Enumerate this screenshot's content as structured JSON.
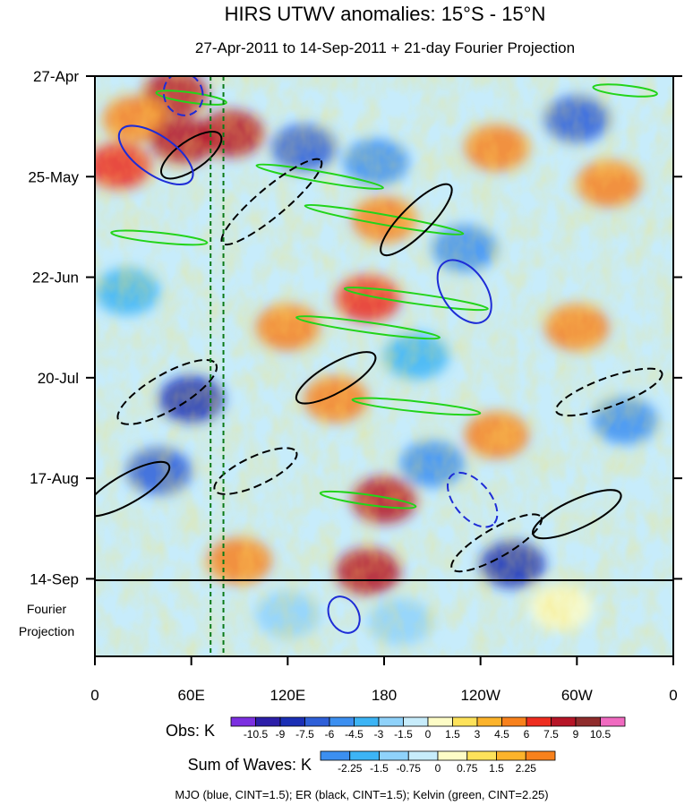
{
  "chart_data": {
    "type": "heatmap",
    "title": "HIRS UTWV anomalies: 15°S - 15°N",
    "subtitle": "27-Apr-2011 to 14-Sep-2011 + 21-day Fourier Projection",
    "x_ticks": [
      "0",
      "60E",
      "120E",
      "180",
      "120W",
      "60W",
      "0"
    ],
    "x_tick_values": [
      0,
      60,
      120,
      180,
      240,
      300,
      360
    ],
    "y_ticks": [
      "27-Apr",
      "25-May",
      "22-Jun",
      "20-Jul",
      "17-Aug",
      "14-Sep"
    ],
    "y_tick_day_offsets": [
      0,
      28,
      56,
      84,
      112,
      140
    ],
    "forecast_label_line1": "Fourier",
    "forecast_label_line2": "Projection",
    "projection_days": 21,
    "reference_lines_lon": [
      72,
      80
    ],
    "obs_colorbar": {
      "label": "Obs: K",
      "levels": [
        "-10.5",
        "-9",
        "-7.5",
        "-6",
        "-4.5",
        "-3",
        "-1.5",
        "0",
        "1.5",
        "3",
        "4.5",
        "6",
        "7.5",
        "9",
        "10.5"
      ],
      "colors": [
        "#7b2fe0",
        "#2c1ea8",
        "#1b2fb5",
        "#2e5fd8",
        "#3c8ff0",
        "#3cb4f5",
        "#8fd2fa",
        "#c7ecfb",
        "#fdfcc6",
        "#fde25a",
        "#fcb32b",
        "#f8811c",
        "#ee2d1f",
        "#b61527",
        "#8f2c2c",
        "#f06ac0"
      ]
    },
    "waves_colorbar": {
      "label": "Sum of Waves: K",
      "levels": [
        "-2.25",
        "-1.5",
        "-0.75",
        "0",
        "0.75",
        "1.5",
        "2.25"
      ],
      "colors": [
        "#3c8ff0",
        "#3cb4f5",
        "#8fd2fa",
        "#c7ecfb",
        "#fdfcc6",
        "#fde25a",
        "#fcb32b",
        "#f8811c"
      ]
    },
    "footer": "MJO (blue, CINT=1.5); ER (black, CINT=1.5); Kelvin (green, CINT=2.25)",
    "contour_colors": {
      "mjo": "#1e2cd6",
      "er": "#000000",
      "kelvin": "#22d41a"
    },
    "observed_anomaly_blobs": [
      {
        "lon": 50,
        "day": 5,
        "v": 8
      },
      {
        "lon": 25,
        "day": 12,
        "v": 6
      },
      {
        "lon": 55,
        "day": 18,
        "v": 9
      },
      {
        "lon": 15,
        "day": 25,
        "v": 7
      },
      {
        "lon": 85,
        "day": 16,
        "v": 8
      },
      {
        "lon": 130,
        "day": 20,
        "v": -6
      },
      {
        "lon": 175,
        "day": 24,
        "v": -5
      },
      {
        "lon": 250,
        "day": 20,
        "v": 6
      },
      {
        "lon": 300,
        "day": 12,
        "v": -7
      },
      {
        "lon": 320,
        "day": 30,
        "v": 6
      },
      {
        "lon": 180,
        "day": 40,
        "v": 6
      },
      {
        "lon": 230,
        "day": 48,
        "v": -5
      },
      {
        "lon": 170,
        "day": 62,
        "v": 7
      },
      {
        "lon": 120,
        "day": 70,
        "v": 6
      },
      {
        "lon": 200,
        "day": 78,
        "v": -4
      },
      {
        "lon": 60,
        "day": 90,
        "v": -8
      },
      {
        "lon": 150,
        "day": 90,
        "v": 5
      },
      {
        "lon": 250,
        "day": 100,
        "v": 6
      },
      {
        "lon": 40,
        "day": 110,
        "v": -6
      },
      {
        "lon": 180,
        "day": 118,
        "v": 8
      },
      {
        "lon": 90,
        "day": 135,
        "v": 6
      },
      {
        "lon": 170,
        "day": 138,
        "v": 8
      },
      {
        "lon": 260,
        "day": 136,
        "v": -8
      },
      {
        "lon": 330,
        "day": 96,
        "v": -5
      },
      {
        "lon": 300,
        "day": 70,
        "v": 5
      },
      {
        "lon": 20,
        "day": 60,
        "v": -4
      },
      {
        "lon": 210,
        "day": 108,
        "v": -5
      },
      {
        "lon": 120,
        "day": 150,
        "v": -2
      },
      {
        "lon": 190,
        "day": 152,
        "v": -2
      },
      {
        "lon": 290,
        "day": 148,
        "v": 1.5
      }
    ],
    "mjo_contours": [
      {
        "lon": 38,
        "day": 22,
        "rl": 12,
        "rd": 12,
        "rot": -55
      },
      {
        "lon": 55,
        "day": 5,
        "rl": 12,
        "rd": 6,
        "rot": -20
      },
      {
        "lon": 230,
        "day": 60,
        "rl": 22,
        "rd": 6,
        "rot": 55
      },
      {
        "lon": 235,
        "day": 118,
        "rl": 20,
        "rd": 5,
        "rot": 50
      },
      {
        "lon": 155,
        "day": 150,
        "rl": 12,
        "rd": 4,
        "rot": 60
      }
    ],
    "er_contours": [
      {
        "lon": 60,
        "day": 22,
        "rl": 22,
        "rd": 4,
        "rot": -35
      },
      {
        "lon": 110,
        "day": 35,
        "rl": 40,
        "rd": 4,
        "rot": -40
      },
      {
        "lon": 200,
        "day": 40,
        "rl": 30,
        "rd": 4,
        "rot": -45
      },
      {
        "lon": 45,
        "day": 88,
        "rl": 35,
        "rd": 5,
        "rot": -30
      },
      {
        "lon": 150,
        "day": 84,
        "rl": 28,
        "rd": 4,
        "rot": -30
      },
      {
        "lon": 320,
        "day": 88,
        "rl": 35,
        "rd": 4,
        "rot": -20
      },
      {
        "lon": 20,
        "day": 115,
        "rl": 30,
        "rd": 4,
        "rot": -30
      },
      {
        "lon": 250,
        "day": 130,
        "rl": 32,
        "rd": 4,
        "rot": -30
      },
      {
        "lon": 300,
        "day": 122,
        "rl": 30,
        "rd": 4,
        "rot": -25
      },
      {
        "lon": 100,
        "day": 110,
        "rl": 28,
        "rd": 4,
        "rot": -25
      }
    ],
    "kelvin_contours": [
      {
        "lon": 60,
        "day": 6,
        "rl": 22,
        "rd": 1.4,
        "rot": 8
      },
      {
        "lon": 140,
        "day": 28,
        "rl": 40,
        "rd": 1.4,
        "rot": 10
      },
      {
        "lon": 180,
        "day": 40,
        "rl": 50,
        "rd": 1.4,
        "rot": 10
      },
      {
        "lon": 40,
        "day": 45,
        "rl": 30,
        "rd": 1.4,
        "rot": 6
      },
      {
        "lon": 200,
        "day": 62,
        "rl": 45,
        "rd": 1.4,
        "rot": 8
      },
      {
        "lon": 170,
        "day": 70,
        "rl": 45,
        "rd": 1.4,
        "rot": 8
      },
      {
        "lon": 200,
        "day": 92,
        "rl": 40,
        "rd": 1.4,
        "rot": 6
      },
      {
        "lon": 170,
        "day": 118,
        "rl": 30,
        "rd": 1.4,
        "rot": 8
      },
      {
        "lon": 330,
        "day": 4,
        "rl": 20,
        "rd": 1.4,
        "rot": 6
      }
    ]
  }
}
